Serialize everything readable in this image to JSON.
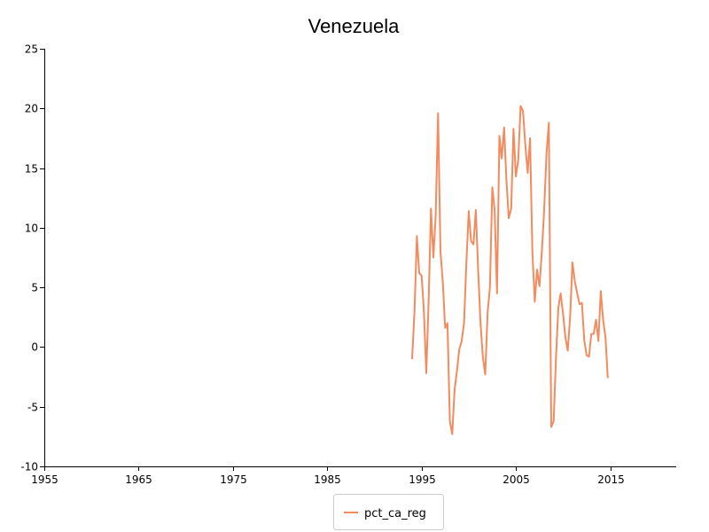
{
  "chart_data": {
    "type": "line",
    "title": "Venezuela",
    "xlabel": "",
    "ylabel": "",
    "xlim": [
      1955,
      2022
    ],
    "ylim": [
      -10,
      25
    ],
    "xticks": [
      1955,
      1965,
      1975,
      1985,
      1995,
      2005,
      2015
    ],
    "yticks": [
      -10,
      -5,
      0,
      5,
      10,
      15,
      20,
      25
    ],
    "grid": false,
    "legend_position": "bottom-center",
    "series": [
      {
        "name": "pct_ca_reg",
        "color": "#f58a5e",
        "points": [
          [
            1994.0,
            -1.0
          ],
          [
            1994.25,
            3.0
          ],
          [
            1994.5,
            9.3
          ],
          [
            1994.75,
            6.2
          ],
          [
            1995.0,
            6.0
          ],
          [
            1995.25,
            3.0
          ],
          [
            1995.5,
            -2.2
          ],
          [
            1995.75,
            4.0
          ],
          [
            1996.0,
            11.6
          ],
          [
            1996.25,
            7.5
          ],
          [
            1996.5,
            11.0
          ],
          [
            1996.75,
            19.6
          ],
          [
            1997.0,
            8.0
          ],
          [
            1997.25,
            5.5
          ],
          [
            1997.5,
            1.6
          ],
          [
            1997.75,
            2.0
          ],
          [
            1998.0,
            -6.2
          ],
          [
            1998.25,
            -7.3
          ],
          [
            1998.5,
            -3.6
          ],
          [
            1998.75,
            -2.0
          ],
          [
            1999.0,
            -0.2
          ],
          [
            1999.25,
            0.5
          ],
          [
            1999.5,
            2.0
          ],
          [
            1999.75,
            7.0
          ],
          [
            2000.0,
            11.4
          ],
          [
            2000.25,
            8.9
          ],
          [
            2000.5,
            8.6
          ],
          [
            2000.75,
            11.5
          ],
          [
            2001.0,
            6.5
          ],
          [
            2001.25,
            2.0
          ],
          [
            2001.5,
            -0.8
          ],
          [
            2001.75,
            -2.3
          ],
          [
            2002.0,
            2.9
          ],
          [
            2002.25,
            5.0
          ],
          [
            2002.5,
            13.4
          ],
          [
            2002.75,
            11.5
          ],
          [
            2003.0,
            4.5
          ],
          [
            2003.25,
            17.7
          ],
          [
            2003.5,
            15.8
          ],
          [
            2003.75,
            18.4
          ],
          [
            2004.0,
            14.0
          ],
          [
            2004.25,
            10.8
          ],
          [
            2004.5,
            11.6
          ],
          [
            2004.75,
            18.3
          ],
          [
            2005.0,
            14.3
          ],
          [
            2005.25,
            15.7
          ],
          [
            2005.5,
            20.2
          ],
          [
            2005.75,
            19.8
          ],
          [
            2006.0,
            17.0
          ],
          [
            2006.25,
            14.6
          ],
          [
            2006.5,
            17.5
          ],
          [
            2006.75,
            8.0
          ],
          [
            2007.0,
            3.8
          ],
          [
            2007.25,
            6.5
          ],
          [
            2007.5,
            5.1
          ],
          [
            2007.75,
            8.0
          ],
          [
            2008.0,
            11.5
          ],
          [
            2008.25,
            16.3
          ],
          [
            2008.5,
            18.8
          ],
          [
            2008.75,
            -6.7
          ],
          [
            2009.0,
            -6.2
          ],
          [
            2009.25,
            -1.0
          ],
          [
            2009.5,
            3.3
          ],
          [
            2009.75,
            4.5
          ],
          [
            2010.0,
            2.8
          ],
          [
            2010.25,
            0.8
          ],
          [
            2010.5,
            -0.3
          ],
          [
            2010.75,
            2.5
          ],
          [
            2011.0,
            7.1
          ],
          [
            2011.25,
            5.5
          ],
          [
            2011.5,
            4.5
          ],
          [
            2011.75,
            3.6
          ],
          [
            2012.0,
            3.7
          ],
          [
            2012.25,
            0.6
          ],
          [
            2012.5,
            -0.7
          ],
          [
            2012.75,
            -0.8
          ],
          [
            2013.0,
            1.1
          ],
          [
            2013.25,
            1.1
          ],
          [
            2013.5,
            2.3
          ],
          [
            2013.75,
            0.5
          ],
          [
            2014.0,
            4.7
          ],
          [
            2014.25,
            2.3
          ],
          [
            2014.5,
            0.8
          ],
          [
            2014.75,
            -2.6
          ]
        ]
      }
    ]
  }
}
